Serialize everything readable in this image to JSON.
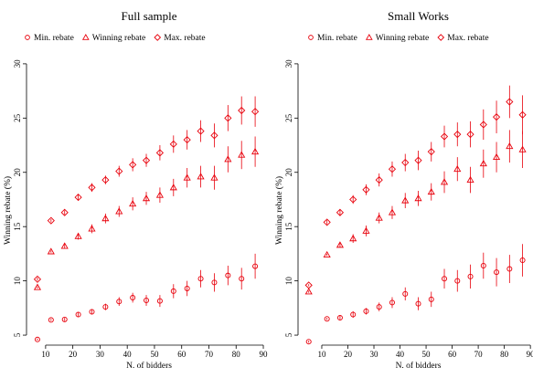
{
  "figure": {
    "color": "#e8000b"
  },
  "chart_data": [
    {
      "type": "scatter",
      "title": "Full sample",
      "xlabel": "N. of bidders",
      "ylabel": "Winning rebate (%)",
      "xlim": [
        5,
        91
      ],
      "ylim": [
        4.5,
        31
      ],
      "xticks": [
        10,
        20,
        30,
        40,
        50,
        60,
        70,
        80,
        90
      ],
      "yticks": [
        5,
        10,
        15,
        20,
        25,
        30
      ],
      "legend": "top",
      "grid": false,
      "series": [
        {
          "name": "Min. rebate",
          "marker": "circle",
          "points": [
            {
              "x": 7,
              "y": 4.6,
              "lo": 4.5,
              "hi": 4.7
            },
            {
              "x": 12,
              "y": 6.4,
              "lo": 6.3,
              "hi": 6.5
            },
            {
              "x": 17,
              "y": 6.45,
              "lo": 6.3,
              "hi": 6.6
            },
            {
              "x": 22,
              "y": 6.9,
              "lo": 6.7,
              "hi": 7.1
            },
            {
              "x": 27,
              "y": 7.15,
              "lo": 6.9,
              "hi": 7.4
            },
            {
              "x": 32,
              "y": 7.6,
              "lo": 7.3,
              "hi": 7.9
            },
            {
              "x": 37,
              "y": 8.1,
              "lo": 7.7,
              "hi": 8.5
            },
            {
              "x": 42,
              "y": 8.45,
              "lo": 8.0,
              "hi": 8.9
            },
            {
              "x": 47,
              "y": 8.2,
              "lo": 7.7,
              "hi": 8.7
            },
            {
              "x": 52,
              "y": 8.15,
              "lo": 7.6,
              "hi": 8.7
            },
            {
              "x": 57,
              "y": 9.05,
              "lo": 8.4,
              "hi": 9.7
            },
            {
              "x": 62,
              "y": 9.3,
              "lo": 8.6,
              "hi": 10.0
            },
            {
              "x": 67,
              "y": 10.2,
              "lo": 9.4,
              "hi": 11.0
            },
            {
              "x": 72,
              "y": 9.85,
              "lo": 9.0,
              "hi": 10.7
            },
            {
              "x": 77,
              "y": 10.5,
              "lo": 9.6,
              "hi": 11.4
            },
            {
              "x": 82,
              "y": 10.2,
              "lo": 9.2,
              "hi": 11.2
            },
            {
              "x": 87,
              "y": 11.35,
              "lo": 10.2,
              "hi": 12.5
            }
          ]
        },
        {
          "name": "Winning rebate",
          "marker": "triangle",
          "points": [
            {
              "x": 7,
              "y": 9.4,
              "lo": 9.3,
              "hi": 9.5
            },
            {
              "x": 12,
              "y": 12.7,
              "lo": 12.6,
              "hi": 12.8
            },
            {
              "x": 17,
              "y": 13.2,
              "lo": 13.0,
              "hi": 13.4
            },
            {
              "x": 22,
              "y": 14.1,
              "lo": 13.8,
              "hi": 14.4
            },
            {
              "x": 27,
              "y": 14.8,
              "lo": 14.4,
              "hi": 15.2
            },
            {
              "x": 32,
              "y": 15.75,
              "lo": 15.3,
              "hi": 16.2
            },
            {
              "x": 37,
              "y": 16.4,
              "lo": 15.9,
              "hi": 16.9
            },
            {
              "x": 42,
              "y": 17.1,
              "lo": 16.5,
              "hi": 17.7
            },
            {
              "x": 47,
              "y": 17.6,
              "lo": 17.0,
              "hi": 18.2
            },
            {
              "x": 52,
              "y": 17.9,
              "lo": 17.2,
              "hi": 18.6
            },
            {
              "x": 57,
              "y": 18.6,
              "lo": 17.8,
              "hi": 19.4
            },
            {
              "x": 62,
              "y": 19.5,
              "lo": 18.6,
              "hi": 20.4
            },
            {
              "x": 67,
              "y": 19.6,
              "lo": 18.6,
              "hi": 20.6
            },
            {
              "x": 72,
              "y": 19.5,
              "lo": 18.4,
              "hi": 20.6
            },
            {
              "x": 77,
              "y": 21.2,
              "lo": 20.0,
              "hi": 22.4
            },
            {
              "x": 82,
              "y": 21.6,
              "lo": 20.3,
              "hi": 22.9
            },
            {
              "x": 87,
              "y": 21.9,
              "lo": 20.5,
              "hi": 23.3
            }
          ]
        },
        {
          "name": "Max. rebate",
          "marker": "diamond",
          "points": [
            {
              "x": 7,
              "y": 10.15,
              "lo": 10.0,
              "hi": 10.3
            },
            {
              "x": 12,
              "y": 15.55,
              "lo": 15.4,
              "hi": 15.7
            },
            {
              "x": 17,
              "y": 16.3,
              "lo": 16.1,
              "hi": 16.5
            },
            {
              "x": 22,
              "y": 17.7,
              "lo": 17.4,
              "hi": 18.0
            },
            {
              "x": 27,
              "y": 18.6,
              "lo": 18.2,
              "hi": 19.0
            },
            {
              "x": 32,
              "y": 19.3,
              "lo": 18.9,
              "hi": 19.7
            },
            {
              "x": 37,
              "y": 20.1,
              "lo": 19.6,
              "hi": 20.6
            },
            {
              "x": 42,
              "y": 20.7,
              "lo": 20.1,
              "hi": 21.3
            },
            {
              "x": 47,
              "y": 21.1,
              "lo": 20.5,
              "hi": 21.7
            },
            {
              "x": 52,
              "y": 21.8,
              "lo": 21.1,
              "hi": 22.5
            },
            {
              "x": 57,
              "y": 22.6,
              "lo": 21.8,
              "hi": 23.4
            },
            {
              "x": 62,
              "y": 23.0,
              "lo": 22.1,
              "hi": 23.9
            },
            {
              "x": 67,
              "y": 23.8,
              "lo": 22.8,
              "hi": 24.8
            },
            {
              "x": 72,
              "y": 23.4,
              "lo": 22.3,
              "hi": 24.5
            },
            {
              "x": 77,
              "y": 25.0,
              "lo": 23.8,
              "hi": 26.2
            },
            {
              "x": 82,
              "y": 25.7,
              "lo": 24.4,
              "hi": 27.0
            },
            {
              "x": 87,
              "y": 25.6,
              "lo": 24.2,
              "hi": 27.0
            }
          ]
        }
      ]
    },
    {
      "type": "scatter",
      "title": "Small Works",
      "xlabel": "N. of bidders",
      "ylabel": "Winning rebate (%)",
      "xlim": [
        3,
        91
      ],
      "ylim": [
        4.5,
        31
      ],
      "xticks": [
        10,
        20,
        30,
        40,
        50,
        60,
        70,
        80,
        90
      ],
      "yticks": [
        5,
        10,
        15,
        20,
        25,
        30
      ],
      "legend": "top",
      "grid": false,
      "series": [
        {
          "name": "Min. rebate",
          "marker": "circle",
          "points": [
            {
              "x": 5,
              "y": 4.4,
              "lo": 4.3,
              "hi": 4.5
            },
            {
              "x": 12,
              "y": 6.5,
              "lo": 6.4,
              "hi": 6.6
            },
            {
              "x": 17,
              "y": 6.6,
              "lo": 6.4,
              "hi": 6.8
            },
            {
              "x": 22,
              "y": 6.9,
              "lo": 6.6,
              "hi": 7.2
            },
            {
              "x": 27,
              "y": 7.2,
              "lo": 6.9,
              "hi": 7.5
            },
            {
              "x": 32,
              "y": 7.6,
              "lo": 7.2,
              "hi": 8.0
            },
            {
              "x": 37,
              "y": 8.0,
              "lo": 7.5,
              "hi": 8.5
            },
            {
              "x": 42,
              "y": 8.8,
              "lo": 8.2,
              "hi": 9.4
            },
            {
              "x": 47,
              "y": 7.9,
              "lo": 7.3,
              "hi": 8.5
            },
            {
              "x": 52,
              "y": 8.3,
              "lo": 7.6,
              "hi": 9.0
            },
            {
              "x": 57,
              "y": 10.2,
              "lo": 9.3,
              "hi": 11.1
            },
            {
              "x": 62,
              "y": 10.0,
              "lo": 9.0,
              "hi": 11.0
            },
            {
              "x": 67,
              "y": 10.4,
              "lo": 9.3,
              "hi": 11.5
            },
            {
              "x": 72,
              "y": 11.4,
              "lo": 10.2,
              "hi": 12.6
            },
            {
              "x": 77,
              "y": 10.8,
              "lo": 9.5,
              "hi": 12.1
            },
            {
              "x": 82,
              "y": 11.1,
              "lo": 9.8,
              "hi": 12.4
            },
            {
              "x": 87,
              "y": 11.9,
              "lo": 10.4,
              "hi": 13.4
            }
          ]
        },
        {
          "name": "Winning rebate",
          "marker": "triangle",
          "points": [
            {
              "x": 5,
              "y": 9.0,
              "lo": 8.9,
              "hi": 9.1
            },
            {
              "x": 12,
              "y": 12.4,
              "lo": 12.3,
              "hi": 12.5
            },
            {
              "x": 17,
              "y": 13.3,
              "lo": 13.1,
              "hi": 13.5
            },
            {
              "x": 22,
              "y": 13.9,
              "lo": 13.5,
              "hi": 14.3
            },
            {
              "x": 27,
              "y": 14.6,
              "lo": 14.1,
              "hi": 15.1
            },
            {
              "x": 32,
              "y": 15.8,
              "lo": 15.3,
              "hi": 16.3
            },
            {
              "x": 37,
              "y": 16.3,
              "lo": 15.7,
              "hi": 16.9
            },
            {
              "x": 42,
              "y": 17.4,
              "lo": 16.7,
              "hi": 18.1
            },
            {
              "x": 47,
              "y": 17.6,
              "lo": 16.9,
              "hi": 18.3
            },
            {
              "x": 52,
              "y": 18.2,
              "lo": 17.4,
              "hi": 19.0
            },
            {
              "x": 57,
              "y": 19.1,
              "lo": 18.1,
              "hi": 20.1
            },
            {
              "x": 62,
              "y": 20.3,
              "lo": 19.2,
              "hi": 21.4
            },
            {
              "x": 67,
              "y": 19.3,
              "lo": 18.1,
              "hi": 20.5
            },
            {
              "x": 72,
              "y": 20.8,
              "lo": 19.5,
              "hi": 22.1
            },
            {
              "x": 77,
              "y": 21.4,
              "lo": 20.0,
              "hi": 22.8
            },
            {
              "x": 82,
              "y": 22.4,
              "lo": 20.9,
              "hi": 23.9
            },
            {
              "x": 87,
              "y": 22.1,
              "lo": 20.4,
              "hi": 23.8
            }
          ]
        },
        {
          "name": "Max. rebate",
          "marker": "diamond",
          "points": [
            {
              "x": 5,
              "y": 9.6,
              "lo": 9.5,
              "hi": 9.7
            },
            {
              "x": 12,
              "y": 15.4,
              "lo": 15.2,
              "hi": 15.6
            },
            {
              "x": 17,
              "y": 16.3,
              "lo": 16.0,
              "hi": 16.6
            },
            {
              "x": 22,
              "y": 17.5,
              "lo": 17.1,
              "hi": 17.9
            },
            {
              "x": 27,
              "y": 18.4,
              "lo": 17.9,
              "hi": 18.9
            },
            {
              "x": 32,
              "y": 19.3,
              "lo": 18.7,
              "hi": 19.9
            },
            {
              "x": 37,
              "y": 20.3,
              "lo": 19.6,
              "hi": 21.0
            },
            {
              "x": 42,
              "y": 20.9,
              "lo": 20.1,
              "hi": 21.7
            },
            {
              "x": 47,
              "y": 21.1,
              "lo": 20.2,
              "hi": 22.0
            },
            {
              "x": 52,
              "y": 21.9,
              "lo": 21.0,
              "hi": 22.8
            },
            {
              "x": 57,
              "y": 23.3,
              "lo": 22.3,
              "hi": 24.3
            },
            {
              "x": 62,
              "y": 23.5,
              "lo": 22.4,
              "hi": 24.6
            },
            {
              "x": 67,
              "y": 23.5,
              "lo": 22.3,
              "hi": 24.7
            },
            {
              "x": 72,
              "y": 24.4,
              "lo": 23.0,
              "hi": 25.8
            },
            {
              "x": 77,
              "y": 25.1,
              "lo": 23.6,
              "hi": 26.6
            },
            {
              "x": 82,
              "y": 26.5,
              "lo": 25.0,
              "hi": 28.0
            },
            {
              "x": 87,
              "y": 25.3,
              "lo": 23.5,
              "hi": 27.1
            }
          ]
        }
      ]
    }
  ]
}
